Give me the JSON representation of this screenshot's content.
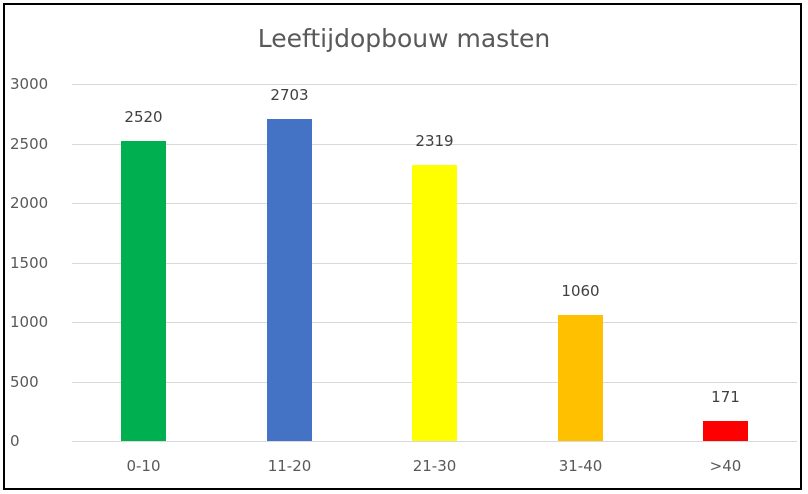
{
  "chart_data": {
    "type": "bar",
    "title": "Leeftijdopbouw masten",
    "categories": [
      "0-10",
      "11-20",
      "21-30",
      "31-40",
      ">40"
    ],
    "values": [
      2520,
      2703,
      2319,
      1060,
      171
    ],
    "colors": [
      "#00B050",
      "#4472C4",
      "#FFFF00",
      "#FFC000",
      "#FF0000"
    ],
    "xlabel": "",
    "ylabel": "",
    "ylim": [
      0,
      3000
    ],
    "yticks": [
      "0",
      "500",
      "1000",
      "1500",
      "2000",
      "2500",
      "3000"
    ],
    "grid": true,
    "legend": "none",
    "data_labels": [
      "2520",
      "2703",
      "2319",
      "1060",
      "171"
    ]
  }
}
